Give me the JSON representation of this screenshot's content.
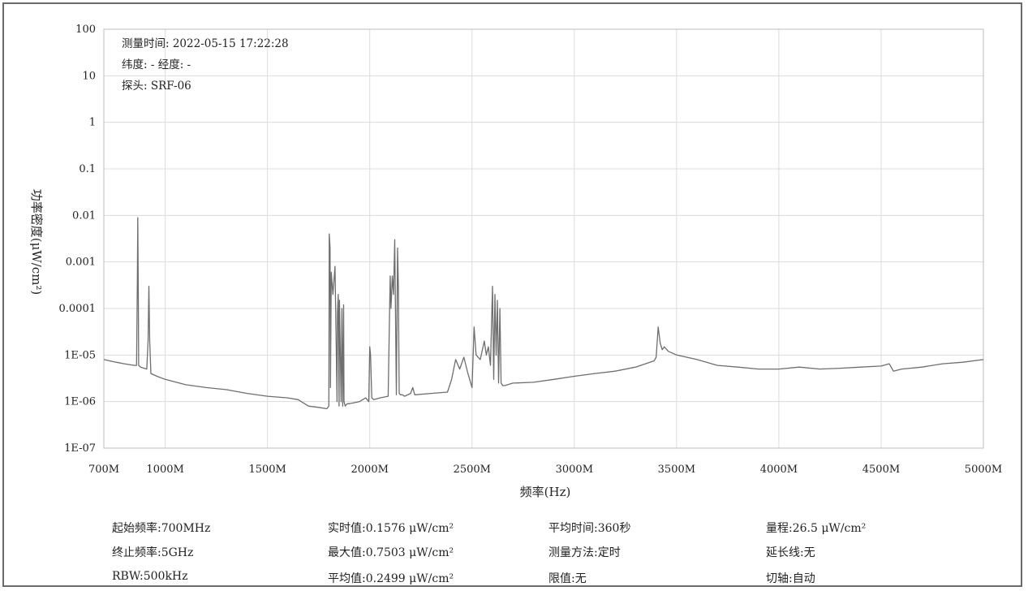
{
  "chart_data": {
    "type": "line",
    "title": "",
    "xlabel": "频率(Hz)",
    "ylabel": "功率密度(μW/cm²)",
    "x_scale": "linear",
    "y_scale": "log",
    "xlim": [
      700,
      5000
    ],
    "ylim": [
      1e-07,
      100
    ],
    "x_tick_values": [
      700,
      1000,
      1500,
      2000,
      2500,
      3000,
      3500,
      4000,
      4500,
      5000
    ],
    "x_tick_labels": [
      "700M",
      "1000M",
      "1500M",
      "2000M",
      "2500M",
      "3000M",
      "3500M",
      "4000M",
      "4500M",
      "5000M"
    ],
    "y_tick_values": [
      100,
      10,
      1,
      0.1,
      0.01,
      0.001,
      0.0001,
      1e-05,
      1e-06,
      1e-07
    ],
    "y_tick_labels": [
      "100",
      "10",
      "1",
      "0.1",
      "0.01",
      "0.001",
      "0.0001",
      "1E-05",
      "1E-06",
      "1E-07"
    ],
    "grid": true,
    "line_color": "#6e6e6e",
    "annotations": [
      "测量时间: 2022-05-15 17:22:28",
      "纬度: - 经度: -",
      "探头: SRF-06"
    ],
    "series": [
      {
        "name": "",
        "x": [
          700,
          760,
          800,
          850,
          860,
          864,
          866,
          868,
          870,
          880,
          910,
          916,
          920,
          924,
          930,
          960,
          1000,
          1100,
          1200,
          1300,
          1400,
          1500,
          1600,
          1650,
          1700,
          1750,
          1790,
          1800,
          1802,
          1806,
          1808,
          1812,
          1820,
          1830,
          1840,
          1842,
          1846,
          1850,
          1852,
          1860,
          1864,
          1868,
          1872,
          1874,
          1880,
          1890,
          1900,
          1950,
          1980,
          1995,
          2000,
          2004,
          2010,
          2020,
          2050,
          2090,
          2100,
          2104,
          2110,
          2116,
          2122,
          2130,
          2136,
          2140,
          2144,
          2150,
          2160,
          2170,
          2200,
          2210,
          2220,
          2300,
          2380,
          2400,
          2420,
          2440,
          2460,
          2480,
          2500,
          2510,
          2520,
          2540,
          2560,
          2570,
          2580,
          2590,
          2600,
          2606,
          2612,
          2618,
          2624,
          2630,
          2636,
          2642,
          2650,
          2660,
          2700,
          2800,
          2900,
          3000,
          3100,
          3200,
          3300,
          3390,
          3400,
          3410,
          3420,
          3430,
          3440,
          3460,
          3500,
          3600,
          3700,
          3800,
          3900,
          4000,
          4100,
          4200,
          4300,
          4400,
          4500,
          4540,
          4560,
          4600,
          4700,
          4800,
          4900,
          5000
        ],
        "y": [
          8e-06,
          7e-06,
          6.5e-06,
          6e-06,
          6e-06,
          0.0004,
          0.009,
          0.0003,
          6e-06,
          5.5e-06,
          5e-06,
          2e-05,
          0.0003,
          2e-05,
          4e-06,
          3.5e-06,
          3e-06,
          2.3e-06,
          2e-06,
          1.8e-06,
          1.5e-06,
          1.3e-06,
          1.2e-06,
          1.1e-06,
          8e-07,
          7.5e-07,
          7e-07,
          8e-07,
          0.004,
          0.002,
          2e-06,
          0.0006,
          0.0002,
          0.0008,
          1e-06,
          8e-05,
          0.0002,
          8e-07,
          0.00015,
          1e-06,
          0.0001,
          8e-07,
          0.00012,
          1e-06,
          8e-07,
          9e-07,
          9e-07,
          1e-06,
          1.2e-06,
          1e-06,
          1.5e-05,
          1e-05,
          1.2e-06,
          1.1e-06,
          1.2e-06,
          1.3e-06,
          0.0005,
          0.0001,
          0.0005,
          0.0002,
          0.003,
          1.4e-06,
          0.002,
          0.0003,
          1.5e-06,
          1.4e-06,
          1.4e-06,
          1.3e-06,
          1.5e-06,
          2e-06,
          1.4e-06,
          1.5e-06,
          1.6e-06,
          3e-06,
          8e-06,
          5e-06,
          9e-06,
          4e-06,
          2e-06,
          4e-05,
          1e-05,
          8e-06,
          2e-05,
          1e-05,
          1.5e-05,
          6e-06,
          0.0003,
          3e-06,
          0.0002,
          1e-05,
          0.00015,
          2.5e-06,
          0.0001,
          2.5e-06,
          2.2e-06,
          2.2e-06,
          2.5e-06,
          2.6e-06,
          3e-06,
          3.5e-06,
          4e-06,
          4.5e-06,
          5.5e-06,
          7.5e-06,
          9e-06,
          4e-05,
          1.8e-05,
          1.3e-05,
          1.5e-05,
          1.2e-05,
          1e-05,
          8e-06,
          6e-06,
          5.5e-06,
          5e-06,
          5e-06,
          5.5e-06,
          5e-06,
          5.2e-06,
          5.5e-06,
          5.8e-06,
          6.5e-06,
          4.5e-06,
          5e-06,
          5.5e-06,
          6.5e-06,
          7e-06,
          8e-06
        ]
      }
    ]
  },
  "footer": {
    "start_freq": "起始频率:700MHz",
    "stop_freq": "终止频率:5GHz",
    "rbw": "RBW:500kHz",
    "realtime_value": "实时值:0.1576 μW/cm²",
    "max_value": "最大值:0.7503 μW/cm²",
    "avg_value": "平均值:0.2499 μW/cm²",
    "avg_time": "平均时间:360秒",
    "measure_method": "测量方法:定时",
    "limit": "限值:无",
    "range": "量程:26.5 μW/cm²",
    "extension_line": "延长线:无",
    "cut_axis": "切轴:自动"
  }
}
